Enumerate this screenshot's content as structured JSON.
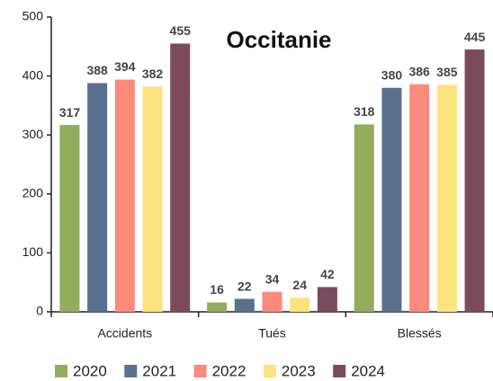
{
  "chart_data": {
    "type": "bar",
    "title": "Occitanie",
    "categories": [
      "Accidents",
      "Tués",
      "Blessés"
    ],
    "series": [
      {
        "name": "2020",
        "color": "#93ad5e",
        "values": [
          317,
          16,
          318
        ]
      },
      {
        "name": "2021",
        "color": "#5a708f",
        "values": [
          388,
          22,
          380
        ]
      },
      {
        "name": "2022",
        "color": "#fb8a7c",
        "values": [
          394,
          34,
          386
        ]
      },
      {
        "name": "2023",
        "color": "#fde37e",
        "values": [
          382,
          24,
          385
        ]
      },
      {
        "name": "2024",
        "color": "#7b4b5d",
        "values": [
          455,
          42,
          445
        ]
      }
    ],
    "ylim": [
      0,
      500
    ],
    "yticks": [
      0,
      100,
      200,
      300,
      400,
      500
    ],
    "grid": false,
    "legend": "bottom"
  }
}
